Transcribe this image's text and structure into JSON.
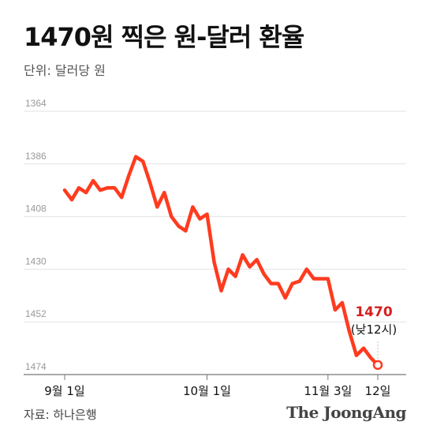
{
  "header": {
    "title": "1470원 찍은 원-달러 환율",
    "unit": "단위: 달러당 원"
  },
  "footer": {
    "source": "자료: 하나은행",
    "brand": "The JoongAng"
  },
  "colors": {
    "line": "#ff3b1f",
    "annotation": "#d81e1e",
    "grid": "#e2e2e2"
  },
  "chart_data": {
    "type": "line",
    "title": "1470원 찍은 원-달러 환율",
    "ylabel": "단위: 달러당 원",
    "y_inverted": true,
    "ylim": [
      1364,
      1474
    ],
    "yticks": [
      1364,
      1386,
      1408,
      1430,
      1452,
      1474
    ],
    "grid": true,
    "xticks": [
      {
        "label": "9월 1일",
        "index": 1
      },
      {
        "label": "10월 1일",
        "index": 21
      },
      {
        "label": "11월 3일",
        "index": 38
      },
      {
        "label": "12일",
        "index": 45
      }
    ],
    "series": [
      {
        "values": [
          1397,
          1401,
          1396,
          1398,
          1393,
          1397,
          1396,
          1396,
          1400,
          1391,
          1383,
          1385,
          1394,
          1404,
          1398,
          1408,
          1412,
          1414,
          1404,
          1409,
          1407,
          1427,
          1439,
          1430,
          1433,
          1424,
          1429,
          1426,
          1432,
          1436,
          1436,
          1442,
          1436,
          1435,
          1430,
          1434,
          1434,
          1434,
          1447,
          1444,
          1456,
          1466,
          1463,
          1467,
          1470
        ]
      }
    ],
    "annotation": {
      "value": "1470",
      "note": "(낮12시)"
    }
  }
}
